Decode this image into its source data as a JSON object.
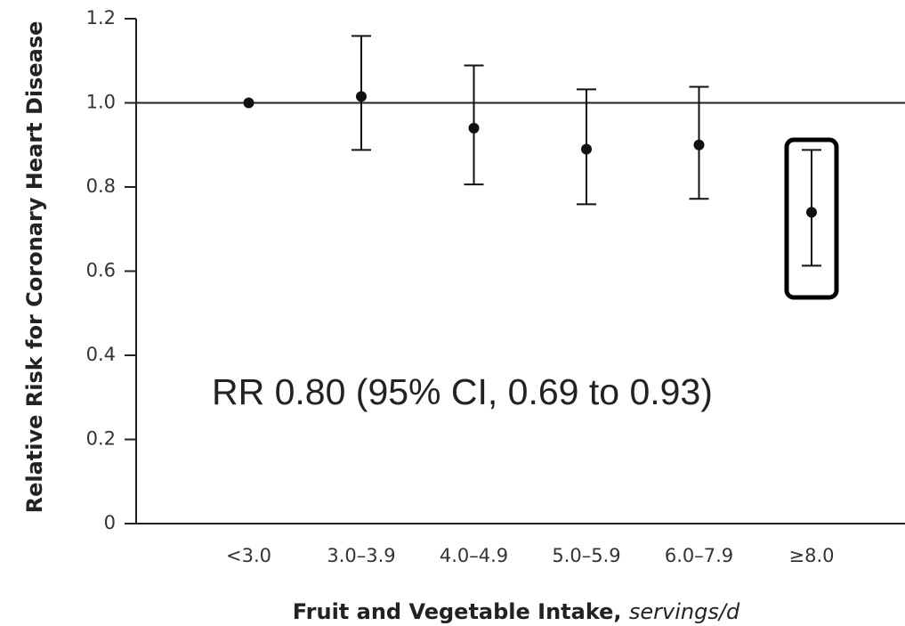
{
  "chart_data": {
    "type": "errorbar",
    "ylabel": "Relative Risk for Coronary Heart Disease",
    "xlabel": "Fruit and Vegetable Intake,",
    "xlabel_unit": "servings/d",
    "annotation": "RR 0.80 (95% CI, 0.69 to 0.93)",
    "categories": [
      "<3.0",
      "3.0–3.9",
      "4.0–4.9",
      "5.0–5.9",
      "6.0–7.9",
      "≥8.0"
    ],
    "values": [
      1.0,
      1.015,
      0.94,
      0.89,
      0.9,
      0.74
    ],
    "lower": [
      null,
      0.888,
      0.806,
      0.759,
      0.772,
      0.613
    ],
    "upper": [
      null,
      1.159,
      1.089,
      1.032,
      1.038,
      0.888
    ],
    "color": "#111111",
    "reference_line": 1,
    "ylim": [
      0,
      1.2
    ],
    "yticks": [
      0,
      0.2,
      0.4,
      0.6,
      0.8,
      {
        "value": 1,
        "label": "1.0"
      },
      1.2
    ]
  }
}
